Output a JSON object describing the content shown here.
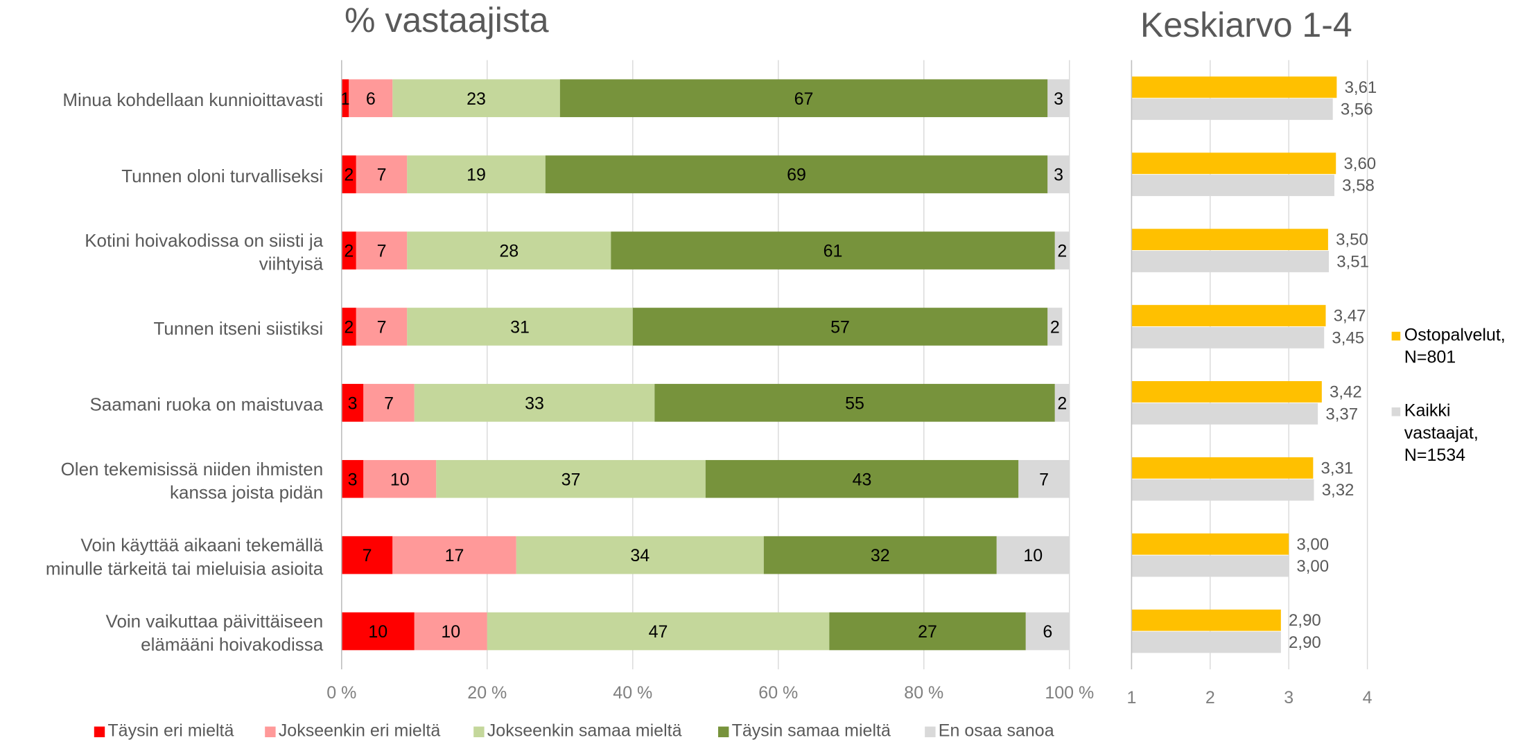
{
  "chart_data": [
    {
      "type": "bar",
      "orientation": "horizontal",
      "stacked": true,
      "title": "% vastaajista",
      "xlabel": "",
      "ylabel": "",
      "xlim": [
        0,
        100
      ],
      "x_ticks": [
        0,
        20,
        40,
        60,
        80,
        100
      ],
      "x_tick_labels": [
        "0 %",
        "20 %",
        "40 %",
        "60 %",
        "80 %",
        "100 %"
      ],
      "grid": true,
      "legend_position": "bottom",
      "categories": [
        [
          "Minua kohdellaan kunnioittavasti"
        ],
        [
          "Tunnen oloni turvalliseksi"
        ],
        [
          "Kotini hoivakodissa on siisti ja",
          "viihtyisä"
        ],
        [
          "Tunnen itseni siistiksi"
        ],
        [
          "Saamani ruoka on maistuvaa"
        ],
        [
          "Olen tekemisissä niiden ihmisten",
          "kanssa joista pidän"
        ],
        [
          "Voin käyttää aikaani tekemällä",
          "minulle tärkeitä tai mieluisia asioita"
        ],
        [
          "Voin vaikuttaa päivittäiseen",
          "elämääni hoivakodissa"
        ]
      ],
      "series": [
        {
          "name": "Täysin eri mieltä",
          "color": "#ff0000",
          "values": [
            1,
            2,
            2,
            2,
            3,
            3,
            7,
            10
          ]
        },
        {
          "name": "Jokseenkin eri mieltä",
          "color": "#ff9999",
          "values": [
            6,
            7,
            7,
            7,
            7,
            10,
            17,
            10
          ]
        },
        {
          "name": "Jokseenkin samaa mieltä",
          "color": "#c4d79b",
          "values": [
            23,
            19,
            28,
            31,
            33,
            37,
            34,
            47
          ]
        },
        {
          "name": "Täysin samaa mieltä",
          "color": "#77933c",
          "values": [
            67,
            69,
            61,
            57,
            55,
            43,
            32,
            27
          ]
        },
        {
          "name": "En osaa sanoa",
          "color": "#d9d9d9",
          "values": [
            3,
            3,
            2,
            2,
            2,
            7,
            10,
            6
          ]
        }
      ]
    },
    {
      "type": "bar",
      "orientation": "horizontal",
      "title": "Keskiarvo 1-4",
      "xlabel": "",
      "ylabel": "",
      "xlim": [
        1,
        4
      ],
      "x_ticks": [
        1,
        2,
        3,
        4
      ],
      "x_tick_labels": [
        "1",
        "2",
        "3",
        "4"
      ],
      "grid": true,
      "legend_position": "right",
      "series": [
        {
          "name": [
            "Ostopalvelut,",
            "N=801"
          ],
          "color": "#ffc000",
          "values": [
            3.61,
            3.6,
            3.5,
            3.47,
            3.42,
            3.31,
            3.0,
            2.9
          ],
          "labels": [
            "3,61",
            "3,60",
            "3,50",
            "3,47",
            "3,42",
            "3,31",
            "3,00",
            "2,90"
          ]
        },
        {
          "name": [
            "Kaikki",
            "vastaajat,",
            "N=1534"
          ],
          "color": "#d9d9d9",
          "values": [
            3.56,
            3.58,
            3.51,
            3.45,
            3.37,
            3.32,
            3.0,
            2.9
          ],
          "labels": [
            "3,56",
            "3,58",
            "3,51",
            "3,45",
            "3,37",
            "3,32",
            "3,00",
            "2,90"
          ]
        }
      ]
    }
  ],
  "colors": {
    "axis_line": "#bfbfbf",
    "gridline": "#d9d9d9",
    "text": "#595959"
  }
}
